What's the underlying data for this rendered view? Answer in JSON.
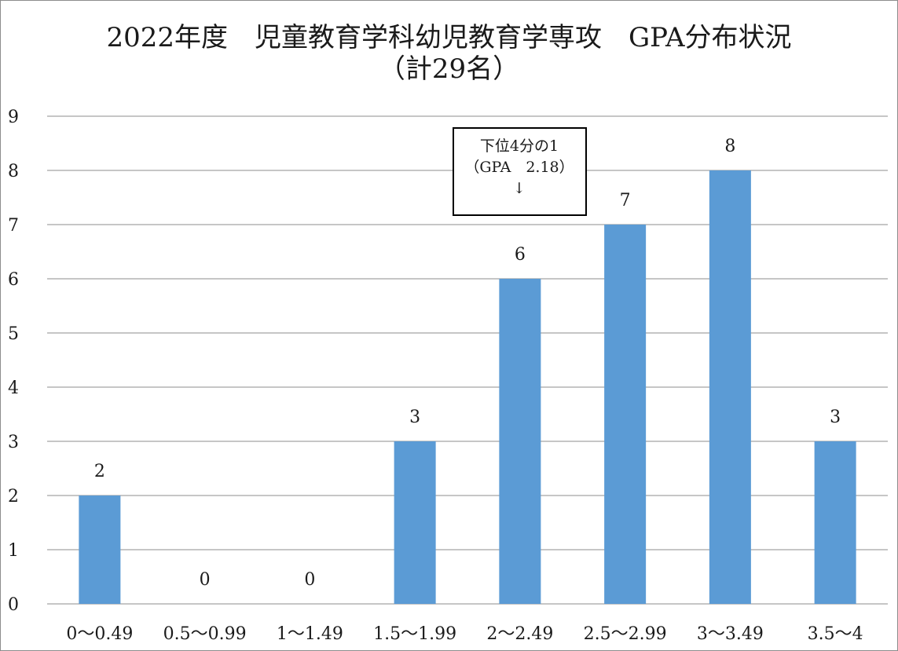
{
  "chart_data": {
    "type": "bar",
    "title_lines": [
      "2022年度　児童教育学科幼児教育学専攻　GPA分布状況",
      "（計29名）"
    ],
    "categories": [
      "0～0.49",
      "0.5～0.99",
      "1～1.49",
      "1.5～1.99",
      "2～2.49",
      "2.5～2.99",
      "3～3.49",
      "3.5～4"
    ],
    "values": [
      2,
      0,
      0,
      3,
      6,
      7,
      8,
      3
    ],
    "ylim": [
      0,
      9
    ],
    "yticks": [
      0,
      1,
      2,
      3,
      4,
      5,
      6,
      7,
      8,
      9
    ],
    "grid": true,
    "bar_color": "#5b9bd5",
    "annotation": {
      "lines": [
        "下位4分の1",
        "（GPA　2.18）",
        "↓"
      ]
    }
  }
}
